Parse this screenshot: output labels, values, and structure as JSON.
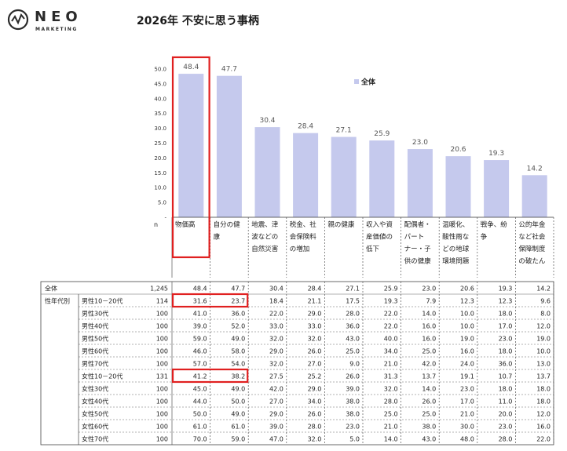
{
  "brand": {
    "name": "NEO",
    "sub": "MARKETING"
  },
  "title": "2026年 不安に思う事柄",
  "colors": {
    "bar": "#c5c9ed",
    "highlight": "#e02020",
    "grid": "#8a8a8a"
  },
  "chart_data": {
    "type": "bar",
    "categories": [
      [
        "物価高"
      ],
      [
        "自分の健",
        "康"
      ],
      [
        "地震、津",
        "波などの",
        "自然災害"
      ],
      [
        "税金、社",
        "会保険料",
        "の増加"
      ],
      [
        "親の健康"
      ],
      [
        "収入や資",
        "産価値の",
        "低下"
      ],
      [
        "配偶者・",
        "パート",
        "ナー・子",
        "供の健康"
      ],
      [
        "温暖化、",
        "酸性雨な",
        "どの地球",
        "環境問題"
      ],
      [
        "戦争、紛",
        "争"
      ],
      [
        "公的年金",
        "など社会",
        "保障制度",
        "の破たん"
      ]
    ],
    "values": [
      48.4,
      47.7,
      30.4,
      28.4,
      27.1,
      25.9,
      23.0,
      20.6,
      19.3,
      14.2
    ],
    "series": [
      {
        "name": "全体",
        "values": [
          48.4,
          47.7,
          30.4,
          28.4,
          27.1,
          25.9,
          23.0,
          20.6,
          19.3,
          14.2
        ]
      }
    ],
    "ylim": [
      0,
      50
    ],
    "yticks": [
      "50.0",
      "45.0",
      "40.0",
      "35.0",
      "30.0",
      "25.0",
      "20.0",
      "15.0",
      "10.0",
      "5.0",
      "-"
    ],
    "legend_position": "top-right",
    "n_header": "n",
    "table": {
      "section_label": "性年代別",
      "rows": [
        {
          "label": "全体",
          "n": "1,245",
          "values": [
            "48.4",
            "47.7",
            "30.4",
            "28.4",
            "27.1",
            "25.9",
            "23.0",
            "20.6",
            "19.3",
            "14.2"
          ]
        },
        {
          "label": "男性10－20代",
          "n": "114",
          "values": [
            "31.6",
            "23.7",
            "18.4",
            "21.1",
            "17.5",
            "19.3",
            "7.9",
            "12.3",
            "12.3",
            "9.6"
          ]
        },
        {
          "label": "男性30代",
          "n": "100",
          "values": [
            "41.0",
            "36.0",
            "22.0",
            "29.0",
            "28.0",
            "22.0",
            "14.0",
            "10.0",
            "18.0",
            "8.0"
          ]
        },
        {
          "label": "男性40代",
          "n": "100",
          "values": [
            "39.0",
            "52.0",
            "33.0",
            "33.0",
            "36.0",
            "22.0",
            "16.0",
            "10.0",
            "17.0",
            "12.0"
          ]
        },
        {
          "label": "男性50代",
          "n": "100",
          "values": [
            "59.0",
            "49.0",
            "32.0",
            "32.0",
            "43.0",
            "40.0",
            "16.0",
            "19.0",
            "23.0",
            "19.0"
          ]
        },
        {
          "label": "男性60代",
          "n": "100",
          "values": [
            "46.0",
            "58.0",
            "29.0",
            "26.0",
            "25.0",
            "34.0",
            "25.0",
            "16.0",
            "18.0",
            "10.0"
          ]
        },
        {
          "label": "男性70代",
          "n": "100",
          "values": [
            "57.0",
            "54.0",
            "32.0",
            "27.0",
            "9.0",
            "21.0",
            "42.0",
            "24.0",
            "36.0",
            "13.0"
          ]
        },
        {
          "label": "女性10－20代",
          "n": "131",
          "values": [
            "41.2",
            "38.2",
            "27.5",
            "25.2",
            "26.0",
            "31.3",
            "13.7",
            "19.1",
            "10.7",
            "13.7"
          ]
        },
        {
          "label": "女性30代",
          "n": "100",
          "values": [
            "45.0",
            "49.0",
            "42.0",
            "29.0",
            "39.0",
            "32.0",
            "14.0",
            "23.0",
            "18.0",
            "18.0"
          ]
        },
        {
          "label": "女性40代",
          "n": "100",
          "values": [
            "44.0",
            "50.0",
            "27.0",
            "34.0",
            "38.0",
            "28.0",
            "26.0",
            "17.0",
            "11.0",
            "18.0"
          ]
        },
        {
          "label": "女性50代",
          "n": "100",
          "values": [
            "50.0",
            "49.0",
            "29.0",
            "26.0",
            "38.0",
            "25.0",
            "25.0",
            "21.0",
            "20.0",
            "12.0"
          ]
        },
        {
          "label": "女性60代",
          "n": "100",
          "values": [
            "61.0",
            "61.0",
            "39.0",
            "28.0",
            "23.0",
            "21.0",
            "38.0",
            "30.0",
            "23.0",
            "16.0"
          ]
        },
        {
          "label": "女性70代",
          "n": "100",
          "values": [
            "70.0",
            "59.0",
            "47.0",
            "32.0",
            "5.0",
            "14.0",
            "43.0",
            "48.0",
            "28.0",
            "22.0"
          ]
        }
      ]
    }
  }
}
